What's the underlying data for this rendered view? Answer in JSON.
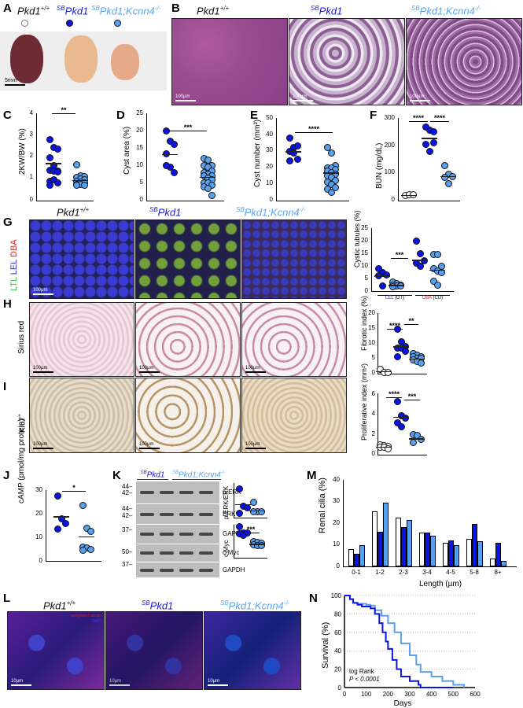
{
  "figure": {
    "panels": [
      "A",
      "B",
      "C",
      "D",
      "E",
      "F",
      "G",
      "H",
      "I",
      "J",
      "K",
      "L",
      "M",
      "N"
    ]
  },
  "genotypes": {
    "wt": {
      "base": "Pkd1",
      "sup": "+/+",
      "prefix": ""
    },
    "sb": {
      "base": "Pkd1",
      "sup": "",
      "prefix": "SB"
    },
    "ko": {
      "base": "Pkd1;Kcnn4",
      "sup": "-/-",
      "prefix": "SB"
    }
  },
  "colors": {
    "wt": "#ffffff",
    "sb": "#0a14e6",
    "ko": "#5aa0f0"
  },
  "panel_a": {
    "scale": "5mm"
  },
  "panel_b": {
    "scale": "100µm"
  },
  "panel_g": {
    "stain_label": [
      "LTL",
      "LEL",
      "DBA"
    ],
    "scale": "100µm"
  },
  "panel_h": {
    "row_label": "Sirius red",
    "scale": "100µm"
  },
  "panel_i": {
    "row_label": "Ki67+",
    "scale": "100µm"
  },
  "panel_l": {
    "legend": [
      "acetylated tubulin",
      "DAPI"
    ],
    "scale": "10µm"
  },
  "panel_k": {
    "group_labels": [
      "SBPkd1",
      "SBPkd1;Kcnn4-/-"
    ],
    "mw_markers": [
      "44",
      "42",
      "44",
      "42",
      "37",
      "50",
      "37"
    ],
    "blot_labels": [
      "p-ERK",
      "ERK",
      "GAPDH",
      "c-Myc",
      "GAPDH"
    ]
  },
  "chart_data": [
    {
      "panel": "C",
      "type": "scatter",
      "ylabel": "2KW/BW (%)",
      "ylim": [
        0,
        4
      ],
      "yticks": [
        0,
        1,
        2,
        3,
        4
      ],
      "series": [
        {
          "name": "SBPkd1",
          "values": [
            2.8,
            2.45,
            2.35,
            1.95,
            1.6,
            1.35,
            1.4,
            1.35,
            1.3,
            0.9,
            0.95,
            0.8,
            0.7
          ],
          "mean": 1.72
        },
        {
          "name": "SBPkd1;Kcnn4-/-",
          "values": [
            1.65,
            1.15,
            1.1,
            1.05,
            1.0,
            0.95,
            0.9,
            0.85,
            0.8,
            0.75,
            0.75,
            0.7,
            0.7
          ],
          "mean": 0.95
        }
      ],
      "significance": "**"
    },
    {
      "panel": "D",
      "type": "scatter",
      "ylabel": "Cyst area (%)",
      "ylim": [
        0,
        25
      ],
      "yticks": [
        0,
        5,
        10,
        15,
        20,
        25
      ],
      "series": [
        {
          "name": "SBPkd1",
          "values": [
            20,
            17,
            16,
            13.5,
            9.5,
            8,
            10
          ],
          "mean": 13.4
        },
        {
          "name": "SBPkd1;Kcnn4-/-",
          "values": [
            12,
            11.5,
            10,
            10,
            9.5,
            8.5,
            8,
            7.5,
            7,
            7,
            6.5,
            6,
            5,
            5,
            4.5,
            4,
            3.5,
            1.5
          ],
          "mean": 6.8
        }
      ],
      "significance": "***"
    },
    {
      "panel": "E",
      "type": "scatter",
      "ylabel": "Cyst number (mm2)",
      "ylim": [
        0,
        50
      ],
      "yticks": [
        0,
        10,
        20,
        30,
        40,
        50
      ],
      "series": [
        {
          "name": "SBPkd1",
          "values": [
            38,
            32,
            33,
            30,
            29,
            25,
            24
          ],
          "mean": 30
        },
        {
          "name": "SBPkd1;Kcnn4-/-",
          "values": [
            32,
            29,
            21,
            20,
            20,
            19,
            18,
            17,
            16,
            15,
            14,
            12,
            11,
            10,
            8,
            7,
            5
          ],
          "mean": 17
        }
      ],
      "significance": "****"
    },
    {
      "panel": "F",
      "type": "scatter",
      "ylabel": "BUN (mg/dL)",
      "ylim": [
        0,
        300
      ],
      "yticks": [
        0,
        100,
        200,
        300
      ],
      "series": [
        {
          "name": "Pkd1+/+",
          "values": [
            20,
            21,
            22
          ],
          "mean": 21
        },
        {
          "name": "SBPkd1",
          "values": [
            268,
            255,
            210,
            205,
            180,
            250
          ],
          "mean": 228
        },
        {
          "name": "SBPkd1;Kcnn4-/-",
          "values": [
            128,
            95,
            88,
            85,
            62
          ],
          "mean": 90
        }
      ],
      "significance": [
        "****",
        "****"
      ]
    },
    {
      "panel": "G",
      "type": "scatter",
      "ylabel": "Cystic tubules (%)",
      "ylim": [
        0,
        25
      ],
      "yticks": [
        0,
        5,
        10,
        15,
        20,
        25
      ],
      "groups": [
        "LEL (DT)",
        "DBA (CD)"
      ],
      "series": [
        {
          "group": "LEL (DT)",
          "name": "SBPkd1",
          "values": [
            9,
            7.5,
            6.5,
            6,
            2
          ],
          "mean": 6.2
        },
        {
          "group": "LEL (DT)",
          "name": "SBPkd1;Kcnn4-/-",
          "values": [
            3.5,
            3,
            2.5,
            2.5,
            2,
            2,
            1.8
          ],
          "mean": 2.5
        },
        {
          "group": "DBA (CD)",
          "name": "SBPkd1",
          "values": [
            20,
            15,
            12,
            11,
            10
          ],
          "mean": 12.5
        },
        {
          "group": "DBA (CD)",
          "name": "SBPkd1;Kcnn4-/-",
          "values": [
            14.5,
            14.5,
            10,
            9,
            8,
            7.5,
            4,
            2.5
          ],
          "mean": 8.5
        }
      ],
      "significance": "***"
    },
    {
      "panel": "H",
      "type": "scatter",
      "ylabel": "Fibrotic index (%)",
      "ylim": [
        0,
        20
      ],
      "yticks": [
        0,
        5,
        10,
        15,
        20
      ],
      "series": [
        {
          "name": "Pkd1+/+",
          "values": [
            1.5,
            0.5,
            0.4
          ],
          "mean": 0.8
        },
        {
          "name": "SBPkd1",
          "values": [
            14.8,
            10.5,
            9,
            8.5,
            8.5,
            7.5,
            5.5
          ],
          "mean": 9
        },
        {
          "name": "SBPkd1;Kcnn4-/-",
          "values": [
            6.5,
            6,
            5.5,
            5.5,
            5,
            5,
            4.5,
            4,
            3.5
          ],
          "mean": 5
        }
      ],
      "significance": [
        "****",
        "**"
      ]
    },
    {
      "panel": "I",
      "type": "scatter",
      "ylabel": "Proliferative index (mm2)",
      "ylim": [
        0,
        6
      ],
      "yticks": [
        0,
        2,
        4,
        6
      ],
      "series": [
        {
          "name": "Pkd1+/+",
          "values": [
            1,
            0.9,
            0.8,
            0.7,
            0.7,
            0.6
          ],
          "mean": 0.8
        },
        {
          "name": "SBPkd1",
          "values": [
            5.2,
            3.8,
            3.6,
            3.1,
            2.7
          ],
          "mean": 3.7
        },
        {
          "name": "SBPkd1;Kcnn4-/-",
          "values": [
            2.0,
            1.9,
            1.5,
            1.2
          ],
          "mean": 1.6
        }
      ],
      "significance": [
        "****",
        "***"
      ]
    },
    {
      "panel": "J",
      "type": "scatter",
      "ylabel": "cAMP (pmol/mg protein)",
      "ylim": [
        0,
        30
      ],
      "yticks": [
        0,
        10,
        20,
        30
      ],
      "series": [
        {
          "name": "SBPkd1",
          "values": [
            27.5,
            18,
            16,
            13.5
          ],
          "mean": 19
        },
        {
          "name": "SBPkd1;Kcnn4-/-",
          "values": [
            23.5,
            14,
            12.5,
            6,
            5.5,
            5,
            4.5
          ],
          "mean": 10.5
        }
      ],
      "significance": "*"
    },
    {
      "panel": "K-pERK",
      "type": "scatter",
      "ylabel": "p-ERK/ERK",
      "ylim": [
        0,
        25
      ],
      "yticks": [
        0,
        5,
        10,
        15,
        20,
        25
      ],
      "series": [
        {
          "name": "SBPkd1",
          "values": [
            21,
            8,
            7,
            3
          ],
          "mean": 9.7
        },
        {
          "name": "SBPkd1;Kcnn4-/-",
          "values": [
            11,
            4,
            4,
            4
          ],
          "mean": 5.2
        }
      ]
    },
    {
      "panel": "K-cMyc",
      "type": "scatter",
      "ylabel": "c-Myc",
      "ylim": [
        0,
        8
      ],
      "yticks": [
        0,
        2,
        4,
        6,
        8
      ],
      "series": [
        {
          "name": "SBPkd1",
          "values": [
            7.5,
            6,
            6,
            5.8,
            5.5
          ],
          "mean": 6.1
        },
        {
          "name": "SBPkd1;Kcnn4-/-",
          "values": [
            4,
            3.8,
            3.5,
            3.2,
            3,
            3
          ],
          "mean": 3.4
        }
      ],
      "significance": "***"
    },
    {
      "panel": "M",
      "type": "bar",
      "ylabel": "Renal cilia (%)",
      "xlabel": "Length (µm)",
      "ylim": [
        0,
        40
      ],
      "yticks": [
        0,
        10,
        20,
        30,
        40
      ],
      "categories": [
        "0-1",
        "1-2",
        "2-3",
        "3-4",
        "4-5",
        "5-8",
        "8+"
      ],
      "series": [
        {
          "name": "Pkd1+/+",
          "values": [
            8,
            25.5,
            22.5,
            15.5,
            10.8,
            12.8,
            3.8
          ]
        },
        {
          "name": "SBPkd1",
          "values": [
            6,
            16,
            18.3,
            15.8,
            12,
            19.8,
            10.8
          ]
        },
        {
          "name": "SBPkd1;Kcnn4-/-",
          "values": [
            9.8,
            29.5,
            21.3,
            14.3,
            9.8,
            11.6,
            2.6
          ]
        }
      ],
      "significance": [
        {
          "cat": "0-1",
          "pair": "SB-KO",
          "label": "*"
        },
        {
          "cat": "1-2",
          "pair": "WT-SB",
          "label": "***"
        },
        {
          "cat": "1-2",
          "pair": "WT-KO",
          "label": "****"
        },
        {
          "cat": "5-8",
          "pair": "WT-SB",
          "label": "**"
        },
        {
          "cat": "5-8",
          "pair": "SB-KO",
          "label": "**"
        },
        {
          "cat": "8+",
          "pair": "WT-SB",
          "label": "**"
        },
        {
          "cat": "8+",
          "pair": "SB-KO",
          "label": "**"
        }
      ]
    },
    {
      "panel": "N",
      "type": "line",
      "title": "",
      "xlabel": "Days",
      "ylabel": "Survival (%)",
      "xlim": [
        0,
        600
      ],
      "ylim": [
        0,
        100
      ],
      "xticks": [
        0,
        100,
        200,
        300,
        400,
        500,
        600
      ],
      "yticks": [
        0,
        20,
        40,
        60,
        80,
        100
      ],
      "grid": "horizontal dotted",
      "annotation": [
        "log Rank",
        "P < 0.0001"
      ],
      "series": [
        {
          "name": "SBPkd1",
          "x": [
            0,
            25,
            40,
            60,
            80,
            120,
            140,
            160,
            175,
            190,
            200,
            220,
            240,
            260,
            300,
            340,
            350,
            500
          ],
          "y": [
            100,
            96,
            92,
            90,
            88,
            86,
            80,
            70,
            60,
            50,
            42,
            30,
            20,
            12,
            7,
            3,
            0,
            0
          ]
        },
        {
          "name": "SBPkd1;Kcnn4-/-",
          "x": [
            0,
            25,
            40,
            60,
            100,
            120,
            140,
            170,
            200,
            230,
            260,
            300,
            330,
            350,
            400,
            450,
            500,
            550
          ],
          "y": [
            100,
            96,
            92,
            91,
            90,
            89,
            84,
            78,
            70,
            60,
            48,
            35,
            25,
            17,
            12,
            7,
            3,
            0
          ]
        }
      ]
    }
  ],
  "text": {
    "panel_c_sig": "**",
    "panel_d_sig": "***",
    "panel_e_sig": "****",
    "panel_f_sig1": "****",
    "panel_f_sig2": "****",
    "panel_g_sig": "***",
    "panel_h_sig1": "****",
    "panel_h_sig2": "**",
    "panel_i_sig1": "****",
    "panel_i_sig2": "***",
    "panel_j_sig": "*",
    "panel_k_sig": "***",
    "c_ylabel": "2KW/BW (%)",
    "d_ylabel": "Cyst area (%)",
    "e_ylabel": "Cyst number (mm²)",
    "f_ylabel": "BUN (mg/dL)",
    "g_ylabel": "Cystic tubules (%)",
    "h_ylabel": "Fibrotic index (%)",
    "i_ylabel": "Proliferative index (mm²)",
    "j_ylabel": "cAMP (pmol/mg protein)",
    "k1_ylabel": "p-ERK/ERK",
    "k2_ylabel": "c-Myc",
    "m_ylabel": "Renal cilia (%)",
    "m_xlabel": "Length (µm)",
    "n_ylabel": "Survival (%)",
    "n_xlabel": "Days",
    "g_group1": "LEL",
    "g_group1b": "(DT)",
    "g_group2": "DBA",
    "g_group2b": "(CD)",
    "n_annot1": "log Rank",
    "n_annot2": "P < 0.0001"
  }
}
